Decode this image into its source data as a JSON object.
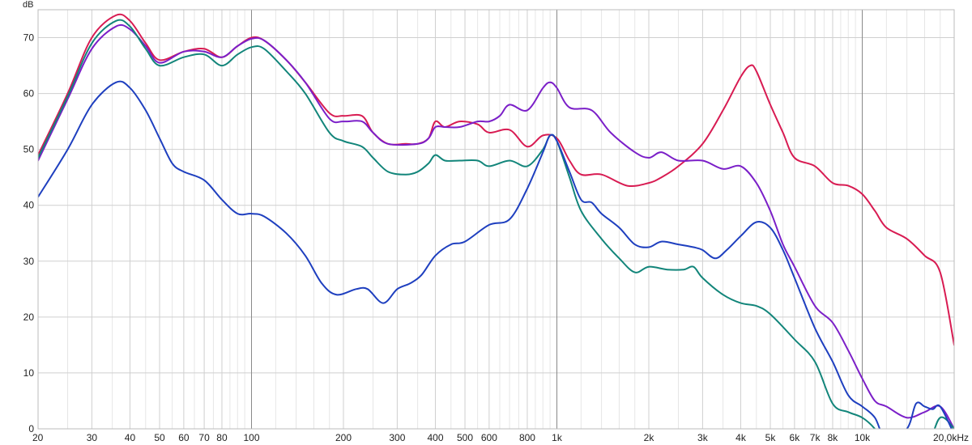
{
  "chart_data": {
    "type": "line",
    "xscale": "log",
    "ylabel": "dB",
    "xlabel": "",
    "xlim": [
      20,
      20000
    ],
    "ylim": [
      0,
      75
    ],
    "grid": true,
    "y_ticks": [
      0,
      10,
      20,
      30,
      40,
      50,
      60,
      70
    ],
    "x_major_ticks": [
      {
        "value": 20,
        "label": "20"
      },
      {
        "value": 30,
        "label": "30"
      },
      {
        "value": 40,
        "label": "40"
      },
      {
        "value": 50,
        "label": "50"
      },
      {
        "value": 60,
        "label": "60"
      },
      {
        "value": 70,
        "label": "70"
      },
      {
        "value": 80,
        "label": "80"
      },
      {
        "value": 100,
        "label": "100"
      },
      {
        "value": 200,
        "label": "200"
      },
      {
        "value": 300,
        "label": "300"
      },
      {
        "value": 400,
        "label": "400"
      },
      {
        "value": 500,
        "label": "500"
      },
      {
        "value": 600,
        "label": "600"
      },
      {
        "value": 800,
        "label": "800"
      },
      {
        "value": 1000,
        "label": "1k"
      },
      {
        "value": 2000,
        "label": "2k"
      },
      {
        "value": 3000,
        "label": "3k"
      },
      {
        "value": 4000,
        "label": "4k"
      },
      {
        "value": 5000,
        "label": "5k"
      },
      {
        "value": 6000,
        "label": "6k"
      },
      {
        "value": 7000,
        "label": "7k"
      },
      {
        "value": 8000,
        "label": "8k"
      },
      {
        "value": 10000,
        "label": "10k"
      },
      {
        "value": 20000,
        "label": "20,0kHz"
      }
    ],
    "x_minor_ticks": [
      25,
      35,
      45,
      55,
      65,
      75,
      85,
      90,
      95,
      120,
      140,
      160,
      180,
      250,
      350,
      450,
      550,
      650,
      700,
      750,
      850,
      900,
      950,
      1200,
      1400,
      1600,
      1800,
      2500,
      3500,
      4500,
      5500,
      6500,
      7500,
      8500,
      9000,
      9500,
      12000,
      14000,
      16000,
      18000
    ],
    "x_emphasis": [
      100,
      1000,
      10000
    ],
    "series": [
      {
        "color": "#d81b52",
        "points": [
          [
            20,
            49
          ],
          [
            25,
            60
          ],
          [
            30,
            70
          ],
          [
            36,
            74
          ],
          [
            40,
            73
          ],
          [
            45,
            69
          ],
          [
            50,
            66
          ],
          [
            60,
            67.5
          ],
          [
            70,
            68
          ],
          [
            80,
            66.5
          ],
          [
            90,
            68.5
          ],
          [
            100,
            70
          ],
          [
            110,
            69.5
          ],
          [
            130,
            66
          ],
          [
            150,
            62
          ],
          [
            180,
            56.5
          ],
          [
            200,
            56
          ],
          [
            230,
            56
          ],
          [
            250,
            53
          ],
          [
            280,
            51
          ],
          [
            320,
            51
          ],
          [
            350,
            51
          ],
          [
            380,
            52
          ],
          [
            400,
            55
          ],
          [
            430,
            54
          ],
          [
            480,
            55
          ],
          [
            550,
            54.5
          ],
          [
            600,
            53
          ],
          [
            700,
            53.5
          ],
          [
            800,
            50.5
          ],
          [
            900,
            52.5
          ],
          [
            1000,
            52
          ],
          [
            1100,
            48
          ],
          [
            1200,
            45.5
          ],
          [
            1400,
            45.5
          ],
          [
            1700,
            43.5
          ],
          [
            2000,
            44
          ],
          [
            2200,
            45
          ],
          [
            2500,
            47
          ],
          [
            3000,
            51
          ],
          [
            3500,
            57
          ],
          [
            4000,
            63
          ],
          [
            4300,
            65
          ],
          [
            4500,
            64
          ],
          [
            5000,
            58
          ],
          [
            5500,
            53
          ],
          [
            6000,
            48.5
          ],
          [
            7000,
            47
          ],
          [
            8000,
            44
          ],
          [
            9000,
            43.5
          ],
          [
            10000,
            42
          ],
          [
            11000,
            39
          ],
          [
            12000,
            36
          ],
          [
            14000,
            34
          ],
          [
            16000,
            31
          ],
          [
            18000,
            28
          ],
          [
            20000,
            15
          ]
        ]
      },
      {
        "color": "#7b1fc8",
        "points": [
          [
            20,
            48
          ],
          [
            25,
            59
          ],
          [
            30,
            68
          ],
          [
            36,
            72
          ],
          [
            40,
            71.5
          ],
          [
            45,
            68.5
          ],
          [
            50,
            65.5
          ],
          [
            60,
            67.5
          ],
          [
            70,
            67.5
          ],
          [
            80,
            66.5
          ],
          [
            90,
            68.5
          ],
          [
            100,
            69.8
          ],
          [
            110,
            69.5
          ],
          [
            130,
            66
          ],
          [
            150,
            62
          ],
          [
            180,
            55.5
          ],
          [
            200,
            55
          ],
          [
            230,
            55
          ],
          [
            250,
            53
          ],
          [
            280,
            51
          ],
          [
            350,
            51
          ],
          [
            380,
            52
          ],
          [
            400,
            54
          ],
          [
            430,
            54
          ],
          [
            480,
            54
          ],
          [
            550,
            55
          ],
          [
            600,
            55
          ],
          [
            650,
            56
          ],
          [
            700,
            58
          ],
          [
            800,
            57
          ],
          [
            900,
            61
          ],
          [
            950,
            62
          ],
          [
            1000,
            61
          ],
          [
            1100,
            57.5
          ],
          [
            1300,
            57
          ],
          [
            1500,
            53
          ],
          [
            1800,
            49.5
          ],
          [
            2000,
            48.5
          ],
          [
            2200,
            49.5
          ],
          [
            2500,
            48
          ],
          [
            3000,
            48
          ],
          [
            3500,
            46.5
          ],
          [
            4000,
            47
          ],
          [
            4500,
            44
          ],
          [
            5000,
            39
          ],
          [
            5500,
            33
          ],
          [
            6000,
            29
          ],
          [
            7000,
            22
          ],
          [
            8000,
            19
          ],
          [
            9000,
            14
          ],
          [
            10000,
            9
          ],
          [
            11000,
            5
          ],
          [
            12000,
            4
          ],
          [
            14000,
            2
          ],
          [
            16000,
            3
          ],
          [
            18000,
            4
          ],
          [
            20000,
            0
          ]
        ]
      },
      {
        "color": "#12857a",
        "points": [
          [
            20,
            48.5
          ],
          [
            25,
            59.5
          ],
          [
            30,
            69
          ],
          [
            36,
            73
          ],
          [
            40,
            72
          ],
          [
            45,
            68
          ],
          [
            50,
            65
          ],
          [
            60,
            66.5
          ],
          [
            70,
            67
          ],
          [
            80,
            65
          ],
          [
            90,
            67
          ],
          [
            100,
            68.3
          ],
          [
            110,
            68
          ],
          [
            130,
            64
          ],
          [
            150,
            60
          ],
          [
            180,
            53
          ],
          [
            200,
            51.5
          ],
          [
            230,
            50.5
          ],
          [
            250,
            48.5
          ],
          [
            280,
            46
          ],
          [
            320,
            45.5
          ],
          [
            350,
            46
          ],
          [
            380,
            47.5
          ],
          [
            400,
            49
          ],
          [
            430,
            48
          ],
          [
            480,
            48
          ],
          [
            550,
            48
          ],
          [
            600,
            47
          ],
          [
            700,
            48
          ],
          [
            800,
            47
          ],
          [
            900,
            50
          ],
          [
            950,
            52.5
          ],
          [
            1000,
            51.5
          ],
          [
            1100,
            45
          ],
          [
            1200,
            39
          ],
          [
            1400,
            34
          ],
          [
            1600,
            30.5
          ],
          [
            1800,
            28
          ],
          [
            2000,
            29
          ],
          [
            2300,
            28.5
          ],
          [
            2600,
            28.5
          ],
          [
            2800,
            29
          ],
          [
            3000,
            27
          ],
          [
            3500,
            24
          ],
          [
            4000,
            22.5
          ],
          [
            4500,
            22
          ],
          [
            5000,
            20.5
          ],
          [
            6000,
            16
          ],
          [
            7000,
            12
          ],
          [
            8000,
            4.5
          ],
          [
            9000,
            3
          ],
          [
            10000,
            2
          ],
          [
            11000,
            0
          ],
          [
            12000,
            -3
          ],
          [
            16000,
            -3
          ],
          [
            18000,
            2
          ],
          [
            20000,
            0
          ]
        ]
      },
      {
        "color": "#1e3fbf",
        "points": [
          [
            20,
            41.5
          ],
          [
            25,
            50
          ],
          [
            30,
            58
          ],
          [
            36,
            62
          ],
          [
            40,
            61
          ],
          [
            45,
            57
          ],
          [
            50,
            52
          ],
          [
            55,
            47.5
          ],
          [
            60,
            46
          ],
          [
            70,
            44.5
          ],
          [
            80,
            41
          ],
          [
            90,
            38.5
          ],
          [
            100,
            38.5
          ],
          [
            110,
            38
          ],
          [
            130,
            35
          ],
          [
            150,
            31
          ],
          [
            170,
            26
          ],
          [
            190,
            24
          ],
          [
            220,
            25
          ],
          [
            240,
            25
          ],
          [
            270,
            22.5
          ],
          [
            300,
            25
          ],
          [
            330,
            26
          ],
          [
            360,
            27.5
          ],
          [
            400,
            31
          ],
          [
            450,
            33
          ],
          [
            500,
            33.5
          ],
          [
            600,
            36.5
          ],
          [
            700,
            37.5
          ],
          [
            800,
            43
          ],
          [
            900,
            49.5
          ],
          [
            950,
            52.5
          ],
          [
            1000,
            51.5
          ],
          [
            1100,
            46
          ],
          [
            1200,
            41
          ],
          [
            1300,
            40.5
          ],
          [
            1400,
            38.5
          ],
          [
            1600,
            36
          ],
          [
            1800,
            33
          ],
          [
            2000,
            32.5
          ],
          [
            2200,
            33.5
          ],
          [
            2500,
            33
          ],
          [
            2800,
            32.5
          ],
          [
            3000,
            32
          ],
          [
            3300,
            30.5
          ],
          [
            3600,
            32
          ],
          [
            4000,
            34.5
          ],
          [
            4500,
            37
          ],
          [
            5000,
            36
          ],
          [
            5500,
            32
          ],
          [
            6000,
            27
          ],
          [
            7000,
            18
          ],
          [
            8000,
            12
          ],
          [
            9000,
            6
          ],
          [
            10000,
            4
          ],
          [
            11000,
            2
          ],
          [
            12000,
            -2
          ],
          [
            14000,
            0
          ],
          [
            15000,
            4.5
          ],
          [
            16000,
            4
          ],
          [
            17000,
            3.5
          ],
          [
            18000,
            4
          ],
          [
            20000,
            -1
          ]
        ]
      }
    ]
  }
}
